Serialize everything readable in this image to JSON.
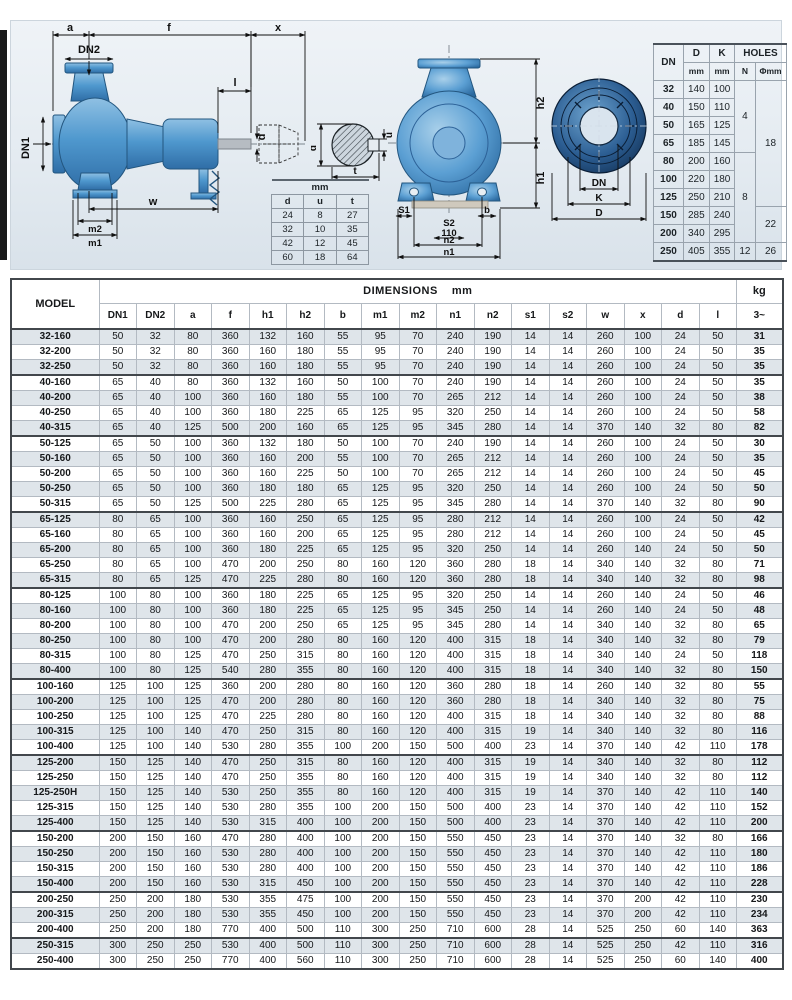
{
  "colors": {
    "pump_blue": "#4f98ce",
    "pump_blue_dark": "#23567f",
    "band_bg": "#e5ebf1",
    "alt_row": "#dfe5ea",
    "border_dark": "#42474c",
    "border_light": "#b3bac2",
    "flange_navy": "#12355d",
    "shaft_gray": "#b6bcc2"
  },
  "drawings": {
    "side": {
      "labels": {
        "a": "a",
        "f": "f",
        "x": "x",
        "dn2": "DN2",
        "dn1": "DN1",
        "l": "l",
        "d": "d",
        "w": "w",
        "m2": "m2",
        "m1": "m1"
      }
    },
    "section": {
      "labels": {
        "d": "d",
        "u": "u",
        "t": "t"
      }
    },
    "front": {
      "labels": {
        "h2": "h2",
        "h1": "h1",
        "s1": "S1",
        "b": "b",
        "s2": "S2",
        "v110": "110",
        "n2": "n2",
        "n1": "n1"
      }
    },
    "flange": {
      "labels": {
        "dn": "DN",
        "k": "K",
        "d": "D"
      }
    }
  },
  "keyway_table": {
    "title": "mm",
    "columns": [
      "d",
      "u",
      "t"
    ],
    "rows": [
      [
        24,
        8,
        27
      ],
      [
        32,
        10,
        35
      ],
      [
        42,
        12,
        45
      ],
      [
        60,
        18,
        64
      ]
    ]
  },
  "flange_table": {
    "col_dn": "DN",
    "col_d": "D",
    "col_k": "K",
    "col_holes": "HOLES",
    "sub_mm": "mm",
    "sub_n": "N",
    "sub_phi": "Φmm",
    "rows": [
      [
        32,
        140,
        100
      ],
      [
        40,
        150,
        110
      ],
      [
        50,
        165,
        125
      ],
      [
        65,
        185,
        145
      ],
      [
        80,
        200,
        160
      ],
      [
        100,
        220,
        180
      ],
      [
        125,
        250,
        210
      ],
      [
        150,
        285,
        240
      ],
      [
        200,
        340,
        295
      ],
      [
        250,
        405,
        355
      ]
    ],
    "n_groups": [
      {
        "value": 4,
        "span": 4
      },
      {
        "value": 8,
        "span": 5
      },
      {
        "value": 12,
        "span": 1
      }
    ],
    "phi_groups": [
      {
        "value": 18,
        "span": 7
      },
      {
        "value": 22,
        "span": 2
      },
      {
        "value": 26,
        "span": 1
      }
    ]
  },
  "dimensions_table": {
    "model_header": "MODEL",
    "group_header": "DIMENSIONS",
    "group_unit": "mm",
    "kg_header": "kg",
    "kg_sub": "3~",
    "columns": [
      "DN1",
      "DN2",
      "a",
      "f",
      "h1",
      "h2",
      "b",
      "m1",
      "m2",
      "n1",
      "n2",
      "s1",
      "s2",
      "w",
      "x",
      "d",
      "l"
    ],
    "group_breaks_after": [
      "32-250",
      "40-315",
      "50-315",
      "65-315",
      "80-400",
      "100-400",
      "125-400",
      "150-400",
      "200-400"
    ],
    "rows": [
      {
        "model": "32-160",
        "v": [
          50,
          32,
          80,
          360,
          132,
          160,
          55,
          95,
          70,
          240,
          190,
          14,
          14,
          260,
          100,
          24,
          50
        ],
        "kg": 31
      },
      {
        "model": "32-200",
        "v": [
          50,
          32,
          80,
          360,
          160,
          180,
          55,
          95,
          70,
          240,
          190,
          14,
          14,
          260,
          100,
          24,
          50
        ],
        "kg": 35
      },
      {
        "model": "32-250",
        "v": [
          50,
          32,
          80,
          360,
          160,
          180,
          55,
          95,
          70,
          240,
          190,
          14,
          14,
          260,
          100,
          24,
          50
        ],
        "kg": 35
      },
      {
        "model": "40-160",
        "v": [
          65,
          40,
          80,
          360,
          132,
          160,
          50,
          100,
          70,
          240,
          190,
          14,
          14,
          260,
          100,
          24,
          50
        ],
        "kg": 35
      },
      {
        "model": "40-200",
        "v": [
          65,
          40,
          100,
          360,
          160,
          180,
          55,
          100,
          70,
          265,
          212,
          14,
          14,
          260,
          100,
          24,
          50
        ],
        "kg": 38
      },
      {
        "model": "40-250",
        "v": [
          65,
          40,
          100,
          360,
          180,
          225,
          65,
          125,
          95,
          320,
          250,
          14,
          14,
          260,
          100,
          24,
          50
        ],
        "kg": 58
      },
      {
        "model": "40-315",
        "v": [
          65,
          40,
          125,
          500,
          200,
          160,
          65,
          125,
          95,
          345,
          280,
          14,
          14,
          370,
          140,
          32,
          80
        ],
        "kg": 82
      },
      {
        "model": "50-125",
        "v": [
          65,
          50,
          100,
          360,
          132,
          180,
          50,
          100,
          70,
          240,
          190,
          14,
          14,
          260,
          100,
          24,
          50
        ],
        "kg": 30
      },
      {
        "model": "50-160",
        "v": [
          65,
          50,
          100,
          360,
          160,
          200,
          55,
          100,
          70,
          265,
          212,
          14,
          14,
          260,
          100,
          24,
          50
        ],
        "kg": 35
      },
      {
        "model": "50-200",
        "v": [
          65,
          50,
          100,
          360,
          160,
          225,
          50,
          100,
          70,
          265,
          212,
          14,
          14,
          260,
          100,
          24,
          50
        ],
        "kg": 45
      },
      {
        "model": "50-250",
        "v": [
          65,
          50,
          100,
          360,
          180,
          180,
          65,
          125,
          95,
          320,
          250,
          14,
          14,
          260,
          100,
          24,
          50
        ],
        "kg": 50
      },
      {
        "model": "50-315",
        "v": [
          65,
          50,
          125,
          500,
          225,
          280,
          65,
          125,
          95,
          345,
          280,
          14,
          14,
          370,
          140,
          32,
          80
        ],
        "kg": 90
      },
      {
        "model": "65-125",
        "v": [
          80,
          65,
          100,
          360,
          160,
          250,
          65,
          125,
          95,
          280,
          212,
          14,
          14,
          260,
          100,
          24,
          50
        ],
        "kg": 42
      },
      {
        "model": "65-160",
        "v": [
          80,
          65,
          100,
          360,
          160,
          200,
          65,
          125,
          95,
          280,
          212,
          14,
          14,
          260,
          100,
          24,
          50
        ],
        "kg": 45
      },
      {
        "model": "65-200",
        "v": [
          80,
          65,
          100,
          360,
          180,
          225,
          65,
          125,
          95,
          320,
          250,
          14,
          14,
          260,
          140,
          24,
          50
        ],
        "kg": 50
      },
      {
        "model": "65-250",
        "v": [
          80,
          65,
          100,
          470,
          200,
          250,
          80,
          160,
          120,
          360,
          280,
          18,
          14,
          340,
          140,
          32,
          80
        ],
        "kg": 71
      },
      {
        "model": "65-315",
        "v": [
          80,
          65,
          125,
          470,
          225,
          280,
          80,
          160,
          120,
          360,
          280,
          18,
          14,
          340,
          140,
          32,
          80
        ],
        "kg": 98
      },
      {
        "model": "80-125",
        "v": [
          100,
          80,
          100,
          360,
          180,
          225,
          65,
          125,
          95,
          320,
          250,
          14,
          14,
          260,
          140,
          24,
          50
        ],
        "kg": 46
      },
      {
        "model": "80-160",
        "v": [
          100,
          80,
          100,
          360,
          180,
          225,
          65,
          125,
          95,
          345,
          250,
          14,
          14,
          260,
          140,
          24,
          50
        ],
        "kg": 48
      },
      {
        "model": "80-200",
        "v": [
          100,
          80,
          100,
          470,
          200,
          250,
          65,
          125,
          95,
          345,
          280,
          14,
          14,
          340,
          140,
          32,
          80
        ],
        "kg": 65
      },
      {
        "model": "80-250",
        "v": [
          100,
          80,
          100,
          470,
          200,
          280,
          80,
          160,
          120,
          400,
          315,
          18,
          14,
          340,
          140,
          32,
          80
        ],
        "kg": 79
      },
      {
        "model": "80-315",
        "v": [
          100,
          80,
          125,
          470,
          250,
          315,
          80,
          160,
          120,
          400,
          315,
          18,
          14,
          340,
          140,
          24,
          50
        ],
        "kg": 118
      },
      {
        "model": "80-400",
        "v": [
          100,
          80,
          125,
          540,
          280,
          355,
          80,
          160,
          120,
          400,
          315,
          18,
          14,
          340,
          140,
          32,
          80
        ],
        "kg": 150
      },
      {
        "model": "100-160",
        "v": [
          125,
          100,
          125,
          360,
          200,
          280,
          80,
          160,
          120,
          360,
          280,
          18,
          14,
          260,
          140,
          32,
          80
        ],
        "kg": 55
      },
      {
        "model": "100-200",
        "v": [
          125,
          100,
          125,
          470,
          200,
          280,
          80,
          160,
          120,
          360,
          280,
          18,
          14,
          340,
          140,
          32,
          80
        ],
        "kg": 75
      },
      {
        "model": "100-250",
        "v": [
          125,
          100,
          125,
          470,
          225,
          280,
          80,
          160,
          120,
          400,
          315,
          18,
          14,
          340,
          140,
          32,
          80
        ],
        "kg": 88
      },
      {
        "model": "100-315",
        "v": [
          125,
          100,
          140,
          470,
          250,
          315,
          80,
          160,
          120,
          400,
          315,
          19,
          14,
          340,
          140,
          32,
          80
        ],
        "kg": 116
      },
      {
        "model": "100-400",
        "v": [
          125,
          100,
          140,
          530,
          280,
          355,
          100,
          200,
          150,
          500,
          400,
          23,
          14,
          370,
          140,
          42,
          110
        ],
        "kg": 178
      },
      {
        "model": "125-200",
        "v": [
          150,
          125,
          140,
          470,
          250,
          315,
          80,
          160,
          120,
          400,
          315,
          19,
          14,
          340,
          140,
          32,
          80
        ],
        "kg": 112
      },
      {
        "model": "125-250",
        "v": [
          150,
          125,
          140,
          470,
          250,
          355,
          80,
          160,
          120,
          400,
          315,
          19,
          14,
          340,
          140,
          32,
          80
        ],
        "kg": 112
      },
      {
        "model": "125-250H",
        "v": [
          150,
          125,
          140,
          530,
          250,
          355,
          80,
          160,
          120,
          400,
          315,
          19,
          14,
          370,
          140,
          42,
          110
        ],
        "kg": 140
      },
      {
        "model": "125-315",
        "v": [
          150,
          125,
          140,
          530,
          280,
          355,
          100,
          200,
          150,
          500,
          400,
          23,
          14,
          370,
          140,
          42,
          110
        ],
        "kg": 152
      },
      {
        "model": "125-400",
        "v": [
          150,
          125,
          140,
          530,
          315,
          400,
          100,
          200,
          150,
          500,
          400,
          23,
          14,
          370,
          140,
          42,
          110
        ],
        "kg": 200
      },
      {
        "model": "150-200",
        "v": [
          200,
          150,
          160,
          470,
          280,
          400,
          100,
          200,
          150,
          550,
          450,
          23,
          14,
          370,
          140,
          32,
          80
        ],
        "kg": 166
      },
      {
        "model": "150-250",
        "v": [
          200,
          150,
          160,
          530,
          280,
          400,
          100,
          200,
          150,
          550,
          450,
          23,
          14,
          370,
          140,
          42,
          110
        ],
        "kg": 180
      },
      {
        "model": "150-315",
        "v": [
          200,
          150,
          160,
          530,
          280,
          400,
          100,
          200,
          150,
          550,
          450,
          23,
          14,
          370,
          140,
          42,
          110
        ],
        "kg": 186
      },
      {
        "model": "150-400",
        "v": [
          200,
          150,
          160,
          530,
          315,
          450,
          100,
          200,
          150,
          550,
          450,
          23,
          14,
          370,
          140,
          42,
          110
        ],
        "kg": 228
      },
      {
        "model": "200-250",
        "v": [
          250,
          200,
          180,
          530,
          355,
          475,
          100,
          200,
          150,
          550,
          450,
          23,
          14,
          370,
          200,
          42,
          110
        ],
        "kg": 230
      },
      {
        "model": "200-315",
        "v": [
          250,
          200,
          180,
          530,
          355,
          450,
          100,
          200,
          150,
          550,
          450,
          23,
          14,
          370,
          200,
          42,
          110
        ],
        "kg": 234
      },
      {
        "model": "200-400",
        "v": [
          250,
          200,
          180,
          770,
          400,
          500,
          110,
          300,
          250,
          710,
          600,
          28,
          14,
          525,
          250,
          60,
          140
        ],
        "kg": 363
      },
      {
        "model": "250-315",
        "v": [
          300,
          250,
          250,
          530,
          400,
          500,
          110,
          300,
          250,
          710,
          600,
          28,
          14,
          525,
          250,
          42,
          110
        ],
        "kg": 316
      },
      {
        "model": "250-400",
        "v": [
          300,
          250,
          250,
          770,
          400,
          560,
          110,
          300,
          250,
          710,
          600,
          28,
          14,
          525,
          250,
          60,
          140
        ],
        "kg": 400
      }
    ]
  }
}
